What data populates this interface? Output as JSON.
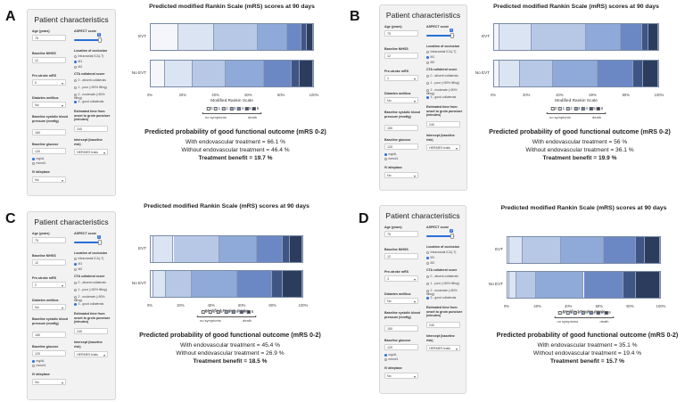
{
  "sidebar": {
    "title": "Patient characteristics",
    "age_label": "Age (years)",
    "nihss_label": "Baseline NIHSS",
    "prestroke_label": "Pre-stroke mRS",
    "diabetes_label": "Diabetes mellitus",
    "sbp_label": "Baseline systolic blood pressure (mmHg)",
    "glucose_label": "Baseline glucose",
    "glucose_units": [
      "mg/dL",
      "mmol/L"
    ],
    "iv_label": "IV alteplase",
    "aspect_label": "ASPECT score",
    "occlusion_label": "Location of occlusion",
    "occlusion_options": [
      "Intracranial ICA(-T)",
      "M1",
      "M2"
    ],
    "collateral_label": "CTA collateral score",
    "collateral_options": [
      "0 - absent collaterals",
      "1 - poor (<50% filling)",
      "2 - moderate (>50% filling)",
      "3 - good collaterals"
    ],
    "onset_label": "Estimated time from onset to groin puncture (minutes)",
    "intercept_label": "Intercept (baseline risk)",
    "intercept_value": "HERMES trials"
  },
  "chart_common": {
    "title": "Predicted modified Rankin Scale (mRS) scores at 90 days",
    "row_labels": [
      "EVT",
      "No EVT"
    ],
    "x_ticks": [
      "0%",
      "20%",
      "40%",
      "60%",
      "80%",
      "100%"
    ],
    "xlabel": "Modified Rankin Scale",
    "legend_levels": [
      "0",
      "1",
      "2",
      "3",
      "4",
      "5",
      "6"
    ],
    "legend_colors": [
      "#f4f6fb",
      "#dbe4f3",
      "#b7c8e6",
      "#8faad8",
      "#6c88c4",
      "#3f5685",
      "#2c3c5c"
    ],
    "arrow_left": "no symptoms",
    "arrow_right": "death",
    "prob_heading": "Predicted probability of good functional outcome (mRS 0-2)",
    "with_prefix": "With endovascular treatment = ",
    "without_prefix": "Without endovascular treatment = ",
    "benefit_prefix": "Treatment benefit = "
  },
  "panels": [
    {
      "id": "A",
      "age": "75",
      "nihss": "12",
      "prestroke": "0",
      "diabetes": "No",
      "sbp": "160",
      "glucose": "120",
      "iv": "No",
      "aspect": "9",
      "occlusion_selected": 1,
      "collateral_selected": 3,
      "onset": "240",
      "with": "66.1 %",
      "without": "46.4 %",
      "benefit": "19.7 %"
    },
    {
      "id": "B",
      "age": "75",
      "nihss": "12",
      "prestroke": "1",
      "diabetes": "No",
      "sbp": "150",
      "glucose": "120",
      "iv": "No",
      "aspect": "9",
      "occlusion_selected": 1,
      "collateral_selected": 3,
      "onset": "240",
      "with": "56 %",
      "without": "36.1 %",
      "benefit": "19.9 %"
    },
    {
      "id": "C",
      "age": "75",
      "nihss": "12",
      "prestroke": "2",
      "diabetes": "No",
      "sbp": "150",
      "glucose": "120",
      "iv": "No",
      "aspect": "9",
      "occlusion_selected": 1,
      "collateral_selected": 3,
      "onset": "240",
      "with": "45.4 %",
      "without": "26.9 %",
      "benefit": "18.5 %"
    },
    {
      "id": "D",
      "age": "75",
      "nihss": "12",
      "prestroke": "3",
      "diabetes": "No",
      "sbp": "150",
      "glucose": "120",
      "iv": "No",
      "aspect": "9",
      "occlusion_selected": 1,
      "collateral_selected": 3,
      "onset": "240",
      "with": "35.1 %",
      "without": "19.4 %",
      "benefit": "15.7 %"
    }
  ],
  "chart_data": [
    {
      "type": "bar",
      "stacked": true,
      "orientation": "horizontal",
      "panel": "A",
      "title": "Predicted modified Rankin Scale (mRS) scores at 90 days",
      "categories": [
        "EVT",
        "No EVT"
      ],
      "xlabel": "Modified Rankin Scale",
      "xlim": [
        0,
        100
      ],
      "series": [
        {
          "name": "0",
          "values": [
            17,
            9
          ]
        },
        {
          "name": "1",
          "values": [
            22,
            17
          ]
        },
        {
          "name": "2",
          "values": [
            27,
            20
          ]
        },
        {
          "name": "3",
          "values": [
            18,
            24
          ]
        },
        {
          "name": "4",
          "values": [
            9,
            17
          ]
        },
        {
          "name": "5",
          "values": [
            3,
            5
          ]
        },
        {
          "name": "6",
          "values": [
            4,
            8
          ]
        }
      ]
    },
    {
      "type": "bar",
      "stacked": true,
      "orientation": "horizontal",
      "panel": "B",
      "title": "Predicted modified Rankin Scale (mRS) scores at 90 days",
      "categories": [
        "EVT",
        "No EVT"
      ],
      "xlabel": "Modified Rankin Scale",
      "xlim": [
        0,
        100
      ],
      "series": [
        {
          "name": "0",
          "values": [
            3,
            3
          ]
        },
        {
          "name": "1",
          "values": [
            20,
            13
          ]
        },
        {
          "name": "2",
          "values": [
            33,
            20
          ]
        },
        {
          "name": "3",
          "values": [
            21,
            27
          ]
        },
        {
          "name": "4",
          "values": [
            13,
            22
          ]
        },
        {
          "name": "5",
          "values": [
            4,
            6
          ]
        },
        {
          "name": "6",
          "values": [
            6,
            9
          ]
        }
      ]
    },
    {
      "type": "bar",
      "stacked": true,
      "orientation": "horizontal",
      "panel": "C",
      "title": "Predicted modified Rankin Scale (mRS) scores at 90 days",
      "categories": [
        "EVT",
        "No EVT"
      ],
      "xlabel": "Modified Rankin Scale",
      "xlim": [
        0,
        100
      ],
      "series": [
        {
          "name": "0",
          "values": [
            2,
            2
          ]
        },
        {
          "name": "1",
          "values": [
            13,
            8
          ]
        },
        {
          "name": "2",
          "values": [
            30,
            17
          ]
        },
        {
          "name": "3",
          "values": [
            25,
            30
          ]
        },
        {
          "name": "4",
          "values": [
            17,
            23
          ]
        },
        {
          "name": "5",
          "values": [
            5,
            7
          ]
        },
        {
          "name": "6",
          "values": [
            8,
            13
          ]
        }
      ]
    },
    {
      "type": "bar",
      "stacked": true,
      "orientation": "horizontal",
      "panel": "D",
      "title": "Predicted modified Rankin Scale (mRS) scores at 90 days",
      "categories": [
        "EVT",
        "No EVT"
      ],
      "xlabel": "Modified Rankin Scale",
      "xlim": [
        0,
        100
      ],
      "series": [
        {
          "name": "0",
          "values": [
            1,
            1
          ]
        },
        {
          "name": "1",
          "values": [
            9,
            5
          ]
        },
        {
          "name": "2",
          "values": [
            25,
            13
          ]
        },
        {
          "name": "3",
          "values": [
            28,
            31
          ]
        },
        {
          "name": "4",
          "values": [
            21,
            26
          ]
        },
        {
          "name": "5",
          "values": [
            6,
            8
          ]
        },
        {
          "name": "6",
          "values": [
            10,
            16
          ]
        }
      ]
    }
  ]
}
